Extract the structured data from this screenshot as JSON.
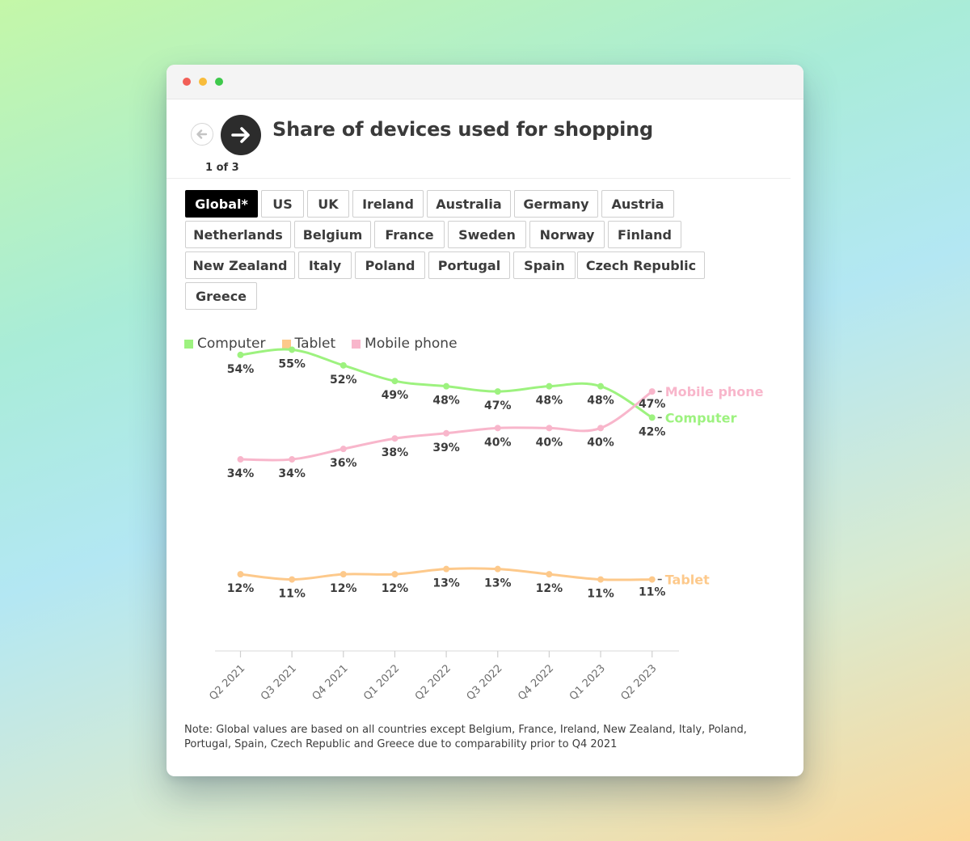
{
  "header": {
    "title": "Share of devices used for shopping",
    "page_indicator": "1 of 3"
  },
  "filters": {
    "active": "Global*",
    "items": [
      "Global*",
      "US",
      "UK",
      "Ireland",
      "Australia",
      "Germany",
      "Austria",
      "Netherlands",
      "Belgium",
      "France",
      "Sweden",
      "Norway",
      "Finland",
      "New Zealand",
      "Italy",
      "Poland",
      "Portugal",
      "Spain",
      "Czech Republic",
      "Greece"
    ]
  },
  "colors": {
    "computer": "#9df27f",
    "tablet": "#fdc98b",
    "mobile": "#f8b6cb",
    "active_filter_bg": "#000000"
  },
  "chart_data": {
    "type": "line",
    "title": "Share of devices used for shopping",
    "categories": [
      "Q2 2021",
      "Q3 2021",
      "Q4 2021",
      "Q1 2022",
      "Q2 2022",
      "Q3 2022",
      "Q4 2022",
      "Q1 2023",
      "Q2 2023"
    ],
    "series": [
      {
        "name": "Computer",
        "end_label": "Computer",
        "values": [
          54,
          55,
          52,
          49,
          48,
          47,
          48,
          48,
          42
        ]
      },
      {
        "name": "Tablet",
        "end_label": "Tablet",
        "values": [
          12,
          11,
          12,
          12,
          13,
          13,
          12,
          11,
          11
        ]
      },
      {
        "name": "Mobile phone",
        "end_label": "Mobile phone",
        "values": [
          34,
          34,
          36,
          38,
          39,
          40,
          40,
          40,
          47
        ]
      }
    ],
    "value_suffix": "%",
    "ylim": [
      0,
      60
    ],
    "grid": false,
    "legend": "top-left",
    "xlabel": "",
    "ylabel": ""
  },
  "note": "Note: Global values are based on all countries except Belgium, France, Ireland, New Zealand, Italy, Poland, Portugal, Spain, Czech Republic and Greece due to comparability prior to Q4 2021"
}
